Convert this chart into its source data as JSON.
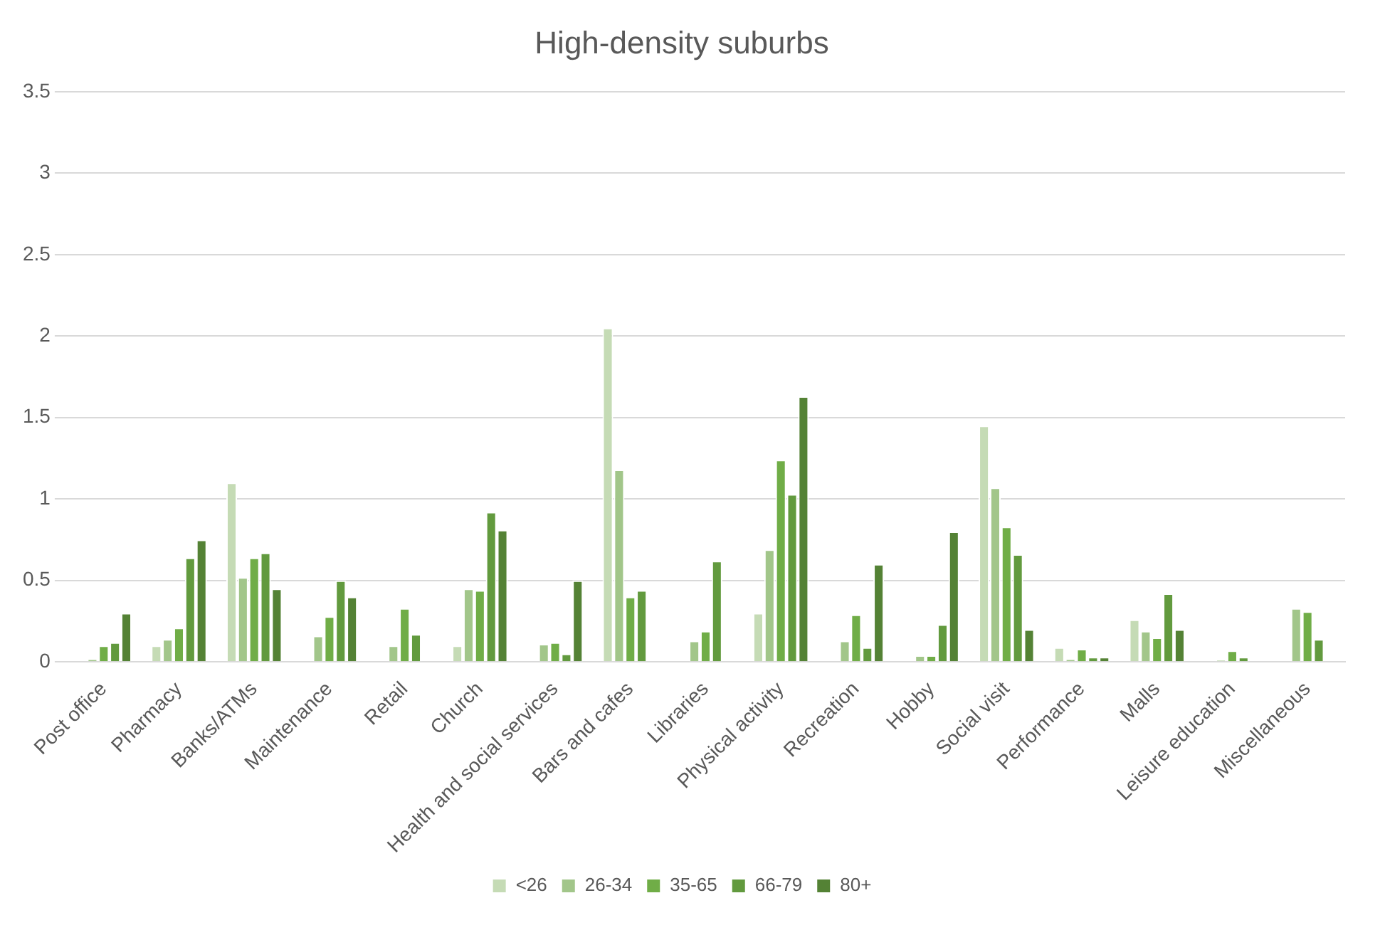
{
  "chart_data": {
    "type": "bar",
    "title": "High-density suburbs",
    "categories": [
      "Post office",
      "Pharmacy",
      "Banks/ATMs",
      "Maintenance",
      "Retail",
      "Church",
      "Health and social services",
      "Bars and cafes",
      "Libraries",
      "Physical activity",
      "Recreation",
      "Hobby",
      "Social visit",
      "Performance",
      "Malls",
      "Leisure education",
      "Miscellaneous"
    ],
    "series": [
      {
        "name": "<26",
        "color": "#c5dbb5",
        "values": [
          0,
          0.1,
          1.1,
          0,
          0,
          0.1,
          0,
          2.05,
          0,
          0.3,
          0,
          0,
          1.45,
          0.09,
          0.26,
          0,
          0
        ]
      },
      {
        "name": "26-34",
        "color": "#a2c68a",
        "values": [
          0.02,
          0.14,
          0.52,
          0.16,
          0.1,
          0.45,
          0.11,
          1.18,
          0.13,
          0.69,
          0.13,
          0.04,
          1.07,
          0.02,
          0.19,
          0.01,
          0.33
        ]
      },
      {
        "name": "35-65",
        "color": "#70ad47",
        "values": [
          0.1,
          0.21,
          0.64,
          0.28,
          0.33,
          0.44,
          0.12,
          0.4,
          0.19,
          1.24,
          0.29,
          0.04,
          0.83,
          0.08,
          0.15,
          0.07,
          0.31
        ]
      },
      {
        "name": "66-79",
        "color": "#629a3e",
        "values": [
          0.12,
          0.64,
          0.67,
          0.5,
          0.17,
          0.92,
          0.05,
          0.44,
          0.62,
          1.03,
          0.09,
          0.23,
          0.66,
          0.03,
          0.42,
          0.03,
          0.14
        ]
      },
      {
        "name": "80+",
        "color": "#548235",
        "values": [
          0.3,
          0.75,
          0.45,
          0.4,
          0,
          0.81,
          0.5,
          0,
          0,
          1.63,
          0.6,
          0.8,
          0.2,
          0.03,
          0.2,
          0,
          0
        ]
      }
    ],
    "ylim": [
      0,
      3.5
    ],
    "yticks": [
      0,
      0.5,
      1,
      1.5,
      2,
      2.5,
      3,
      3.5
    ],
    "grid": "y",
    "legend": "bottom"
  }
}
